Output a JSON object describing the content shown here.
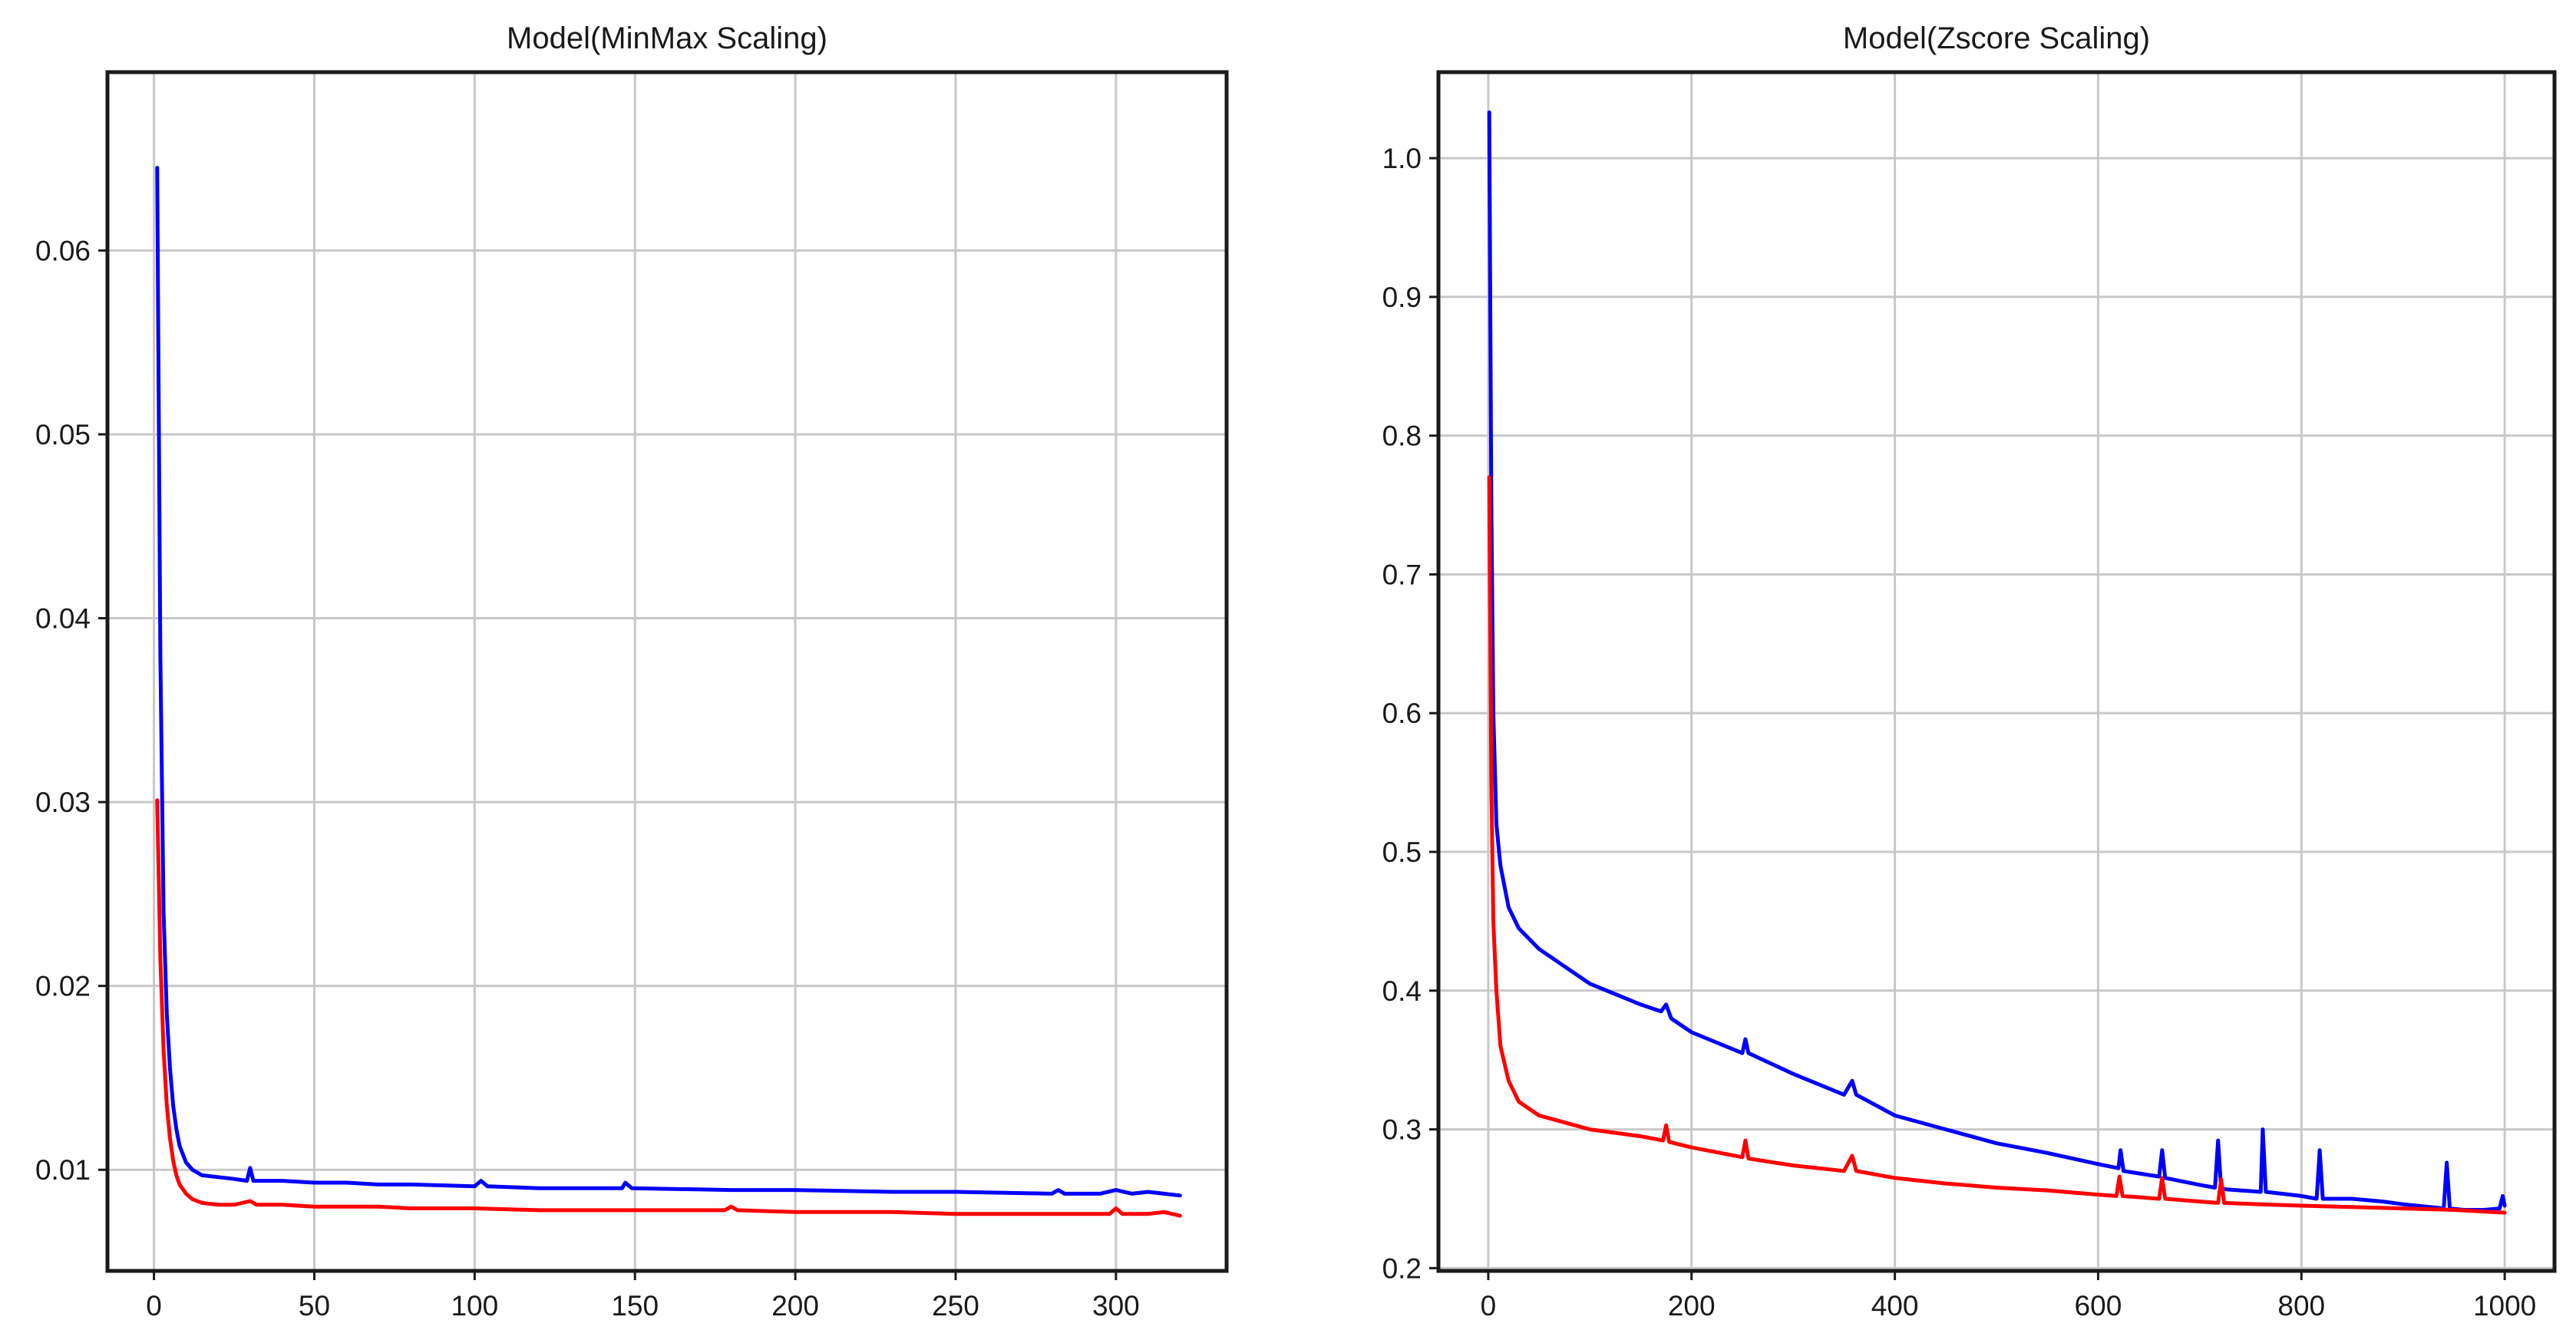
{
  "chart_data": [
    {
      "type": "line",
      "title": "Model(MinMax Scaling)",
      "xlabel": "",
      "ylabel": "",
      "xlim": [
        -14.5,
        334.5
      ],
      "ylim": [
        0.0045,
        0.0697
      ],
      "xticks": [
        0,
        50,
        100,
        150,
        200,
        250,
        300
      ],
      "yticks": [
        0.01,
        0.02,
        0.03,
        0.04,
        0.05,
        0.06
      ],
      "ytick_labels": [
        "0.01",
        "0.02",
        "0.03",
        "0.04",
        "0.05",
        "0.06"
      ],
      "grid": true,
      "series": [
        {
          "color": "#0000ff",
          "points": [
            [
              1,
              0.0645
            ],
            [
              2,
              0.038
            ],
            [
              3,
              0.024
            ],
            [
              4,
              0.0185
            ],
            [
              5,
              0.0155
            ],
            [
              6,
              0.0135
            ],
            [
              7,
              0.0122
            ],
            [
              8,
              0.0113
            ],
            [
              10,
              0.0104
            ],
            [
              12,
              0.01
            ],
            [
              15,
              0.0097
            ],
            [
              20,
              0.0096
            ],
            [
              25,
              0.0095
            ],
            [
              29,
              0.0094
            ],
            [
              30,
              0.0101
            ],
            [
              31,
              0.0094
            ],
            [
              40,
              0.0094
            ],
            [
              50,
              0.0093
            ],
            [
              60,
              0.0093
            ],
            [
              70,
              0.0092
            ],
            [
              80,
              0.0092
            ],
            [
              100,
              0.0091
            ],
            [
              102,
              0.0094
            ],
            [
              104,
              0.0091
            ],
            [
              120,
              0.009
            ],
            [
              146,
              0.009
            ],
            [
              147,
              0.0093
            ],
            [
              149,
              0.009
            ],
            [
              180,
              0.0089
            ],
            [
              200,
              0.0089
            ],
            [
              230,
              0.0088
            ],
            [
              250,
              0.0088
            ],
            [
              280,
              0.0087
            ],
            [
              282,
              0.0089
            ],
            [
              284,
              0.0087
            ],
            [
              295,
              0.0087
            ],
            [
              300,
              0.0089
            ],
            [
              305,
              0.0087
            ],
            [
              310,
              0.0088
            ],
            [
              315,
              0.0087
            ],
            [
              320,
              0.0086
            ]
          ]
        },
        {
          "color": "#ff0000",
          "points": [
            [
              1,
              0.0301
            ],
            [
              2,
              0.0215
            ],
            [
              3,
              0.0165
            ],
            [
              4,
              0.0135
            ],
            [
              5,
              0.0117
            ],
            [
              6,
              0.0105
            ],
            [
              7,
              0.0097
            ],
            [
              8,
              0.0092
            ],
            [
              10,
              0.0087
            ],
            [
              12,
              0.0084
            ],
            [
              15,
              0.0082
            ],
            [
              20,
              0.0081
            ],
            [
              25,
              0.0081
            ],
            [
              30,
              0.0083
            ],
            [
              32,
              0.0081
            ],
            [
              40,
              0.0081
            ],
            [
              50,
              0.008
            ],
            [
              60,
              0.008
            ],
            [
              70,
              0.008
            ],
            [
              80,
              0.0079
            ],
            [
              100,
              0.0079
            ],
            [
              120,
              0.0078
            ],
            [
              150,
              0.0078
            ],
            [
              178,
              0.0078
            ],
            [
              180,
              0.008
            ],
            [
              182,
              0.0078
            ],
            [
              200,
              0.0077
            ],
            [
              230,
              0.0077
            ],
            [
              250,
              0.0076
            ],
            [
              280,
              0.0076
            ],
            [
              298,
              0.0076
            ],
            [
              300,
              0.0079
            ],
            [
              302,
              0.0076
            ],
            [
              310,
              0.0076
            ],
            [
              315,
              0.0077
            ],
            [
              320,
              0.0075
            ]
          ]
        }
      ]
    },
    {
      "type": "line",
      "title": "Model(Zscore Scaling)",
      "xlabel": "",
      "ylabel": "",
      "xlim": [
        -49,
        1049
      ],
      "ylim": [
        0.198,
        1.062
      ],
      "xticks": [
        0,
        200,
        400,
        600,
        800,
        1000
      ],
      "yticks": [
        0.2,
        0.3,
        0.4,
        0.5,
        0.6,
        0.7,
        0.8,
        0.9,
        1.0
      ],
      "ytick_labels": [
        "0.2",
        "0.3",
        "0.4",
        "0.5",
        "0.6",
        "0.7",
        "0.8",
        "0.9",
        "1.0"
      ],
      "grid": true,
      "series": [
        {
          "color": "#0000ff",
          "points": [
            [
              1,
              1.033
            ],
            [
              3,
              0.75
            ],
            [
              5,
              0.6
            ],
            [
              8,
              0.52
            ],
            [
              12,
              0.49
            ],
            [
              20,
              0.46
            ],
            [
              30,
              0.445
            ],
            [
              50,
              0.43
            ],
            [
              100,
              0.405
            ],
            [
              150,
              0.39
            ],
            [
              170,
              0.385
            ],
            [
              175,
              0.39
            ],
            [
              180,
              0.38
            ],
            [
              200,
              0.37
            ],
            [
              250,
              0.355
            ],
            [
              253,
              0.365
            ],
            [
              256,
              0.355
            ],
            [
              300,
              0.34
            ],
            [
              350,
              0.325
            ],
            [
              358,
              0.335
            ],
            [
              362,
              0.325
            ],
            [
              400,
              0.31
            ],
            [
              450,
              0.3
            ],
            [
              500,
              0.29
            ],
            [
              550,
              0.283
            ],
            [
              600,
              0.275
            ],
            [
              620,
              0.272
            ],
            [
              622,
              0.285
            ],
            [
              625,
              0.27
            ],
            [
              660,
              0.266
            ],
            [
              663,
              0.285
            ],
            [
              666,
              0.265
            ],
            [
              700,
              0.26
            ],
            [
              715,
              0.258
            ],
            [
              718,
              0.292
            ],
            [
              721,
              0.257
            ],
            [
              760,
              0.255
            ],
            [
              762,
              0.3
            ],
            [
              765,
              0.255
            ],
            [
              800,
              0.252
            ],
            [
              815,
              0.25
            ],
            [
              818,
              0.285
            ],
            [
              821,
              0.25
            ],
            [
              850,
              0.25
            ],
            [
              880,
              0.248
            ],
            [
              900,
              0.246
            ],
            [
              940,
              0.243
            ],
            [
              943,
              0.276
            ],
            [
              946,
              0.243
            ],
            [
              960,
              0.242
            ],
            [
              980,
              0.242
            ],
            [
              995,
              0.243
            ],
            [
              998,
              0.252
            ],
            [
              1000,
              0.245
            ]
          ]
        },
        {
          "color": "#ff0000",
          "points": [
            [
              1,
              0.77
            ],
            [
              3,
              0.55
            ],
            [
              5,
              0.45
            ],
            [
              8,
              0.4
            ],
            [
              12,
              0.36
            ],
            [
              20,
              0.335
            ],
            [
              30,
              0.32
            ],
            [
              50,
              0.31
            ],
            [
              100,
              0.3
            ],
            [
              150,
              0.295
            ],
            [
              172,
              0.292
            ],
            [
              175,
              0.303
            ],
            [
              178,
              0.291
            ],
            [
              200,
              0.287
            ],
            [
              250,
              0.28
            ],
            [
              253,
              0.292
            ],
            [
              256,
              0.279
            ],
            [
              300,
              0.274
            ],
            [
              350,
              0.27
            ],
            [
              358,
              0.281
            ],
            [
              362,
              0.27
            ],
            [
              400,
              0.265
            ],
            [
              450,
              0.261
            ],
            [
              500,
              0.258
            ],
            [
              550,
              0.256
            ],
            [
              600,
              0.253
            ],
            [
              618,
              0.252
            ],
            [
              621,
              0.266
            ],
            [
              624,
              0.252
            ],
            [
              660,
              0.25
            ],
            [
              663,
              0.265
            ],
            [
              666,
              0.25
            ],
            [
              700,
              0.248
            ],
            [
              718,
              0.247
            ],
            [
              721,
              0.264
            ],
            [
              724,
              0.247
            ],
            [
              760,
              0.246
            ],
            [
              800,
              0.245
            ],
            [
              850,
              0.244
            ],
            [
              900,
              0.243
            ],
            [
              950,
              0.242
            ],
            [
              1000,
              0.24
            ]
          ]
        }
      ]
    }
  ]
}
